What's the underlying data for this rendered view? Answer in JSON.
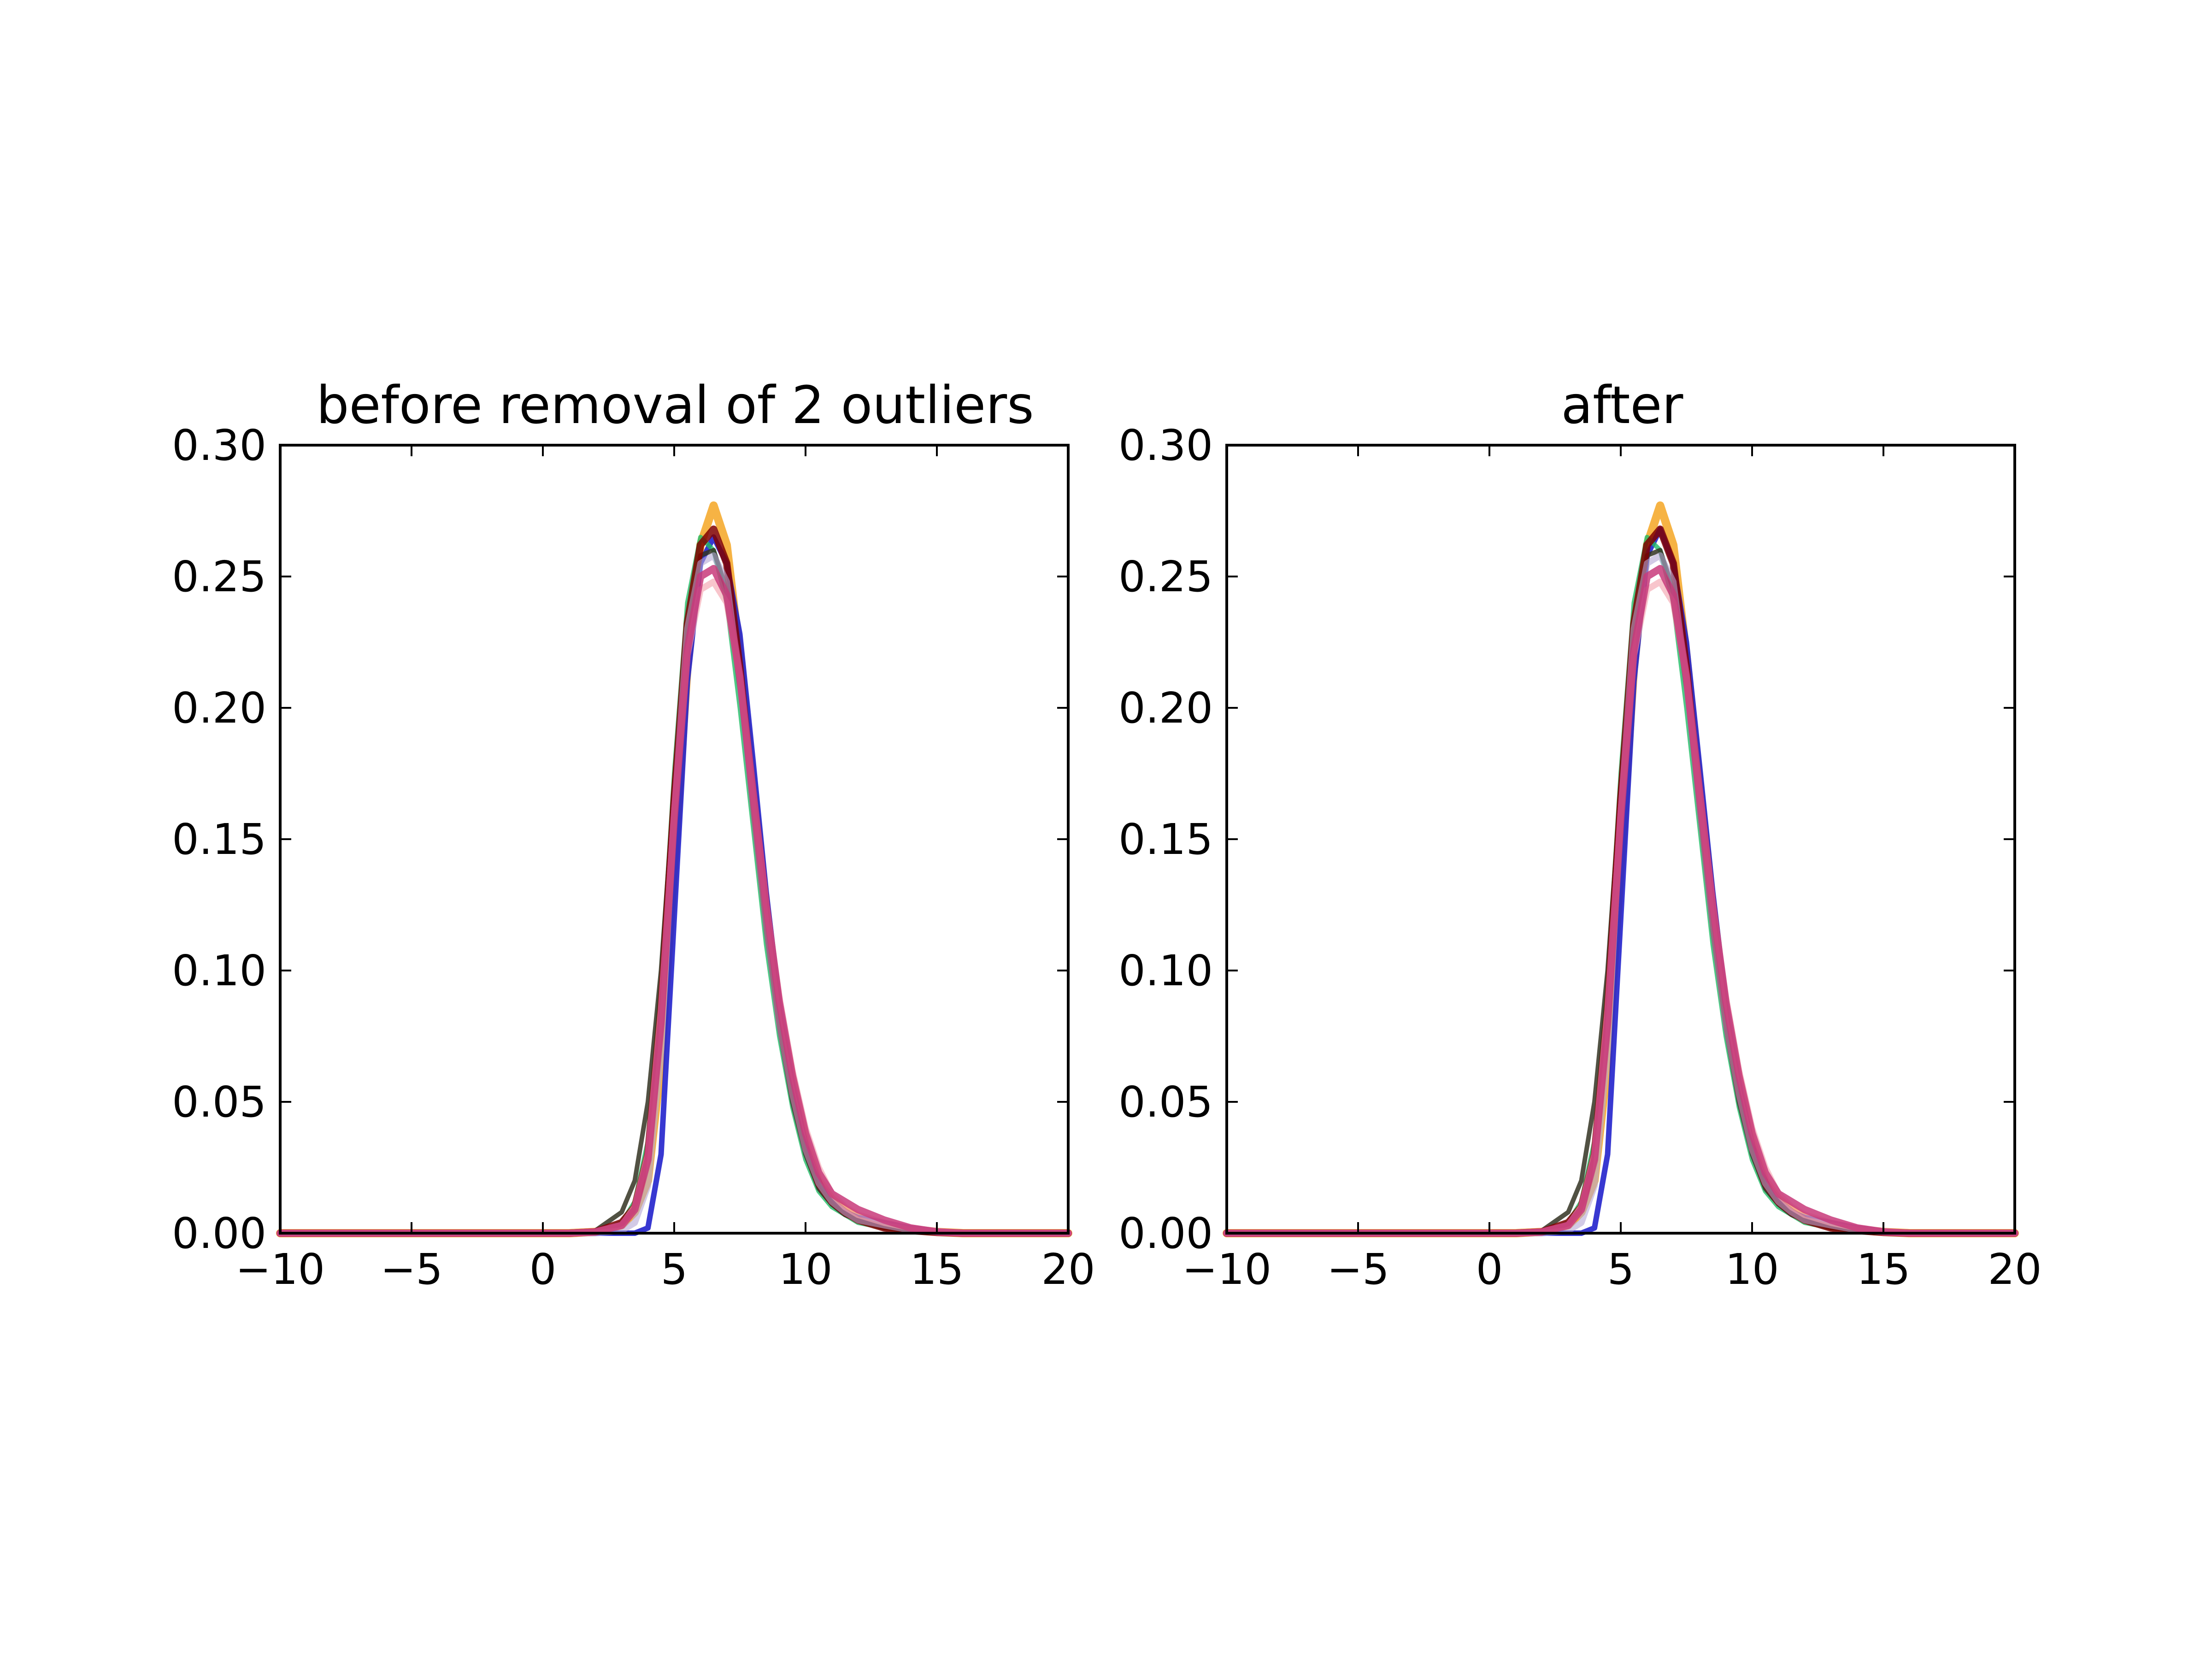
{
  "chart_data": [
    {
      "type": "line",
      "title": "before removal of 2 outliers",
      "xlabel": "",
      "ylabel": "",
      "xlim": [
        -10,
        20
      ],
      "ylim": [
        0,
        0.3
      ],
      "grid": false,
      "legend": "none",
      "x_ticks": [
        "−10",
        "−5",
        "0",
        "5",
        "10",
        "15",
        "20"
      ],
      "x_tick_values": [
        -10,
        -5,
        0,
        5,
        10,
        15,
        20
      ],
      "y_ticks": [
        "0.00",
        "0.05",
        "0.10",
        "0.15",
        "0.20",
        "0.25",
        "0.30"
      ],
      "y_tick_values": [
        0,
        0.05,
        0.1,
        0.15,
        0.2,
        0.25,
        0.3
      ],
      "x": [
        -10,
        1,
        2,
        3,
        3.5,
        4,
        4.5,
        5,
        5.5,
        6,
        6.5,
        7,
        7.5,
        8,
        8.5,
        9,
        9.5,
        10,
        10.5,
        11,
        11.5,
        12,
        13,
        14,
        15,
        16,
        20
      ],
      "series": [
        {
          "color": "#f5a623",
          "values": [
            0,
            0,
            0.0005,
            0.003,
            0.008,
            0.02,
            0.065,
            0.14,
            0.215,
            0.262,
            0.277,
            0.262,
            0.22,
            0.17,
            0.125,
            0.085,
            0.058,
            0.035,
            0.02,
            0.013,
            0.009,
            0.006,
            0.003,
            0.0015,
            0.0005,
            0,
            0
          ]
        },
        {
          "color": "#2222cc",
          "values": [
            0,
            0,
            0,
            0,
            0,
            0.002,
            0.03,
            0.12,
            0.21,
            0.255,
            0.265,
            0.255,
            0.228,
            0.18,
            0.13,
            0.088,
            0.058,
            0.034,
            0.018,
            0.012,
            0.008,
            0.006,
            0.004,
            0.002,
            0.0008,
            0,
            0
          ]
        },
        {
          "color": "#22bb66",
          "values": [
            0,
            0,
            0.0005,
            0.004,
            0.012,
            0.035,
            0.095,
            0.175,
            0.24,
            0.265,
            0.26,
            0.24,
            0.2,
            0.155,
            0.11,
            0.075,
            0.048,
            0.028,
            0.016,
            0.01,
            0.007,
            0.004,
            0.002,
            0.001,
            0.0003,
            0,
            0
          ]
        },
        {
          "color": "#333322",
          "values": [
            0,
            0,
            0.001,
            0.008,
            0.02,
            0.05,
            0.1,
            0.17,
            0.23,
            0.258,
            0.26,
            0.245,
            0.207,
            0.16,
            0.115,
            0.078,
            0.05,
            0.03,
            0.017,
            0.011,
            0.007,
            0.005,
            0.002,
            0.001,
            0.0003,
            0,
            0
          ]
        },
        {
          "color": "#800000",
          "values": [
            0,
            0,
            0.0005,
            0.004,
            0.01,
            0.03,
            0.085,
            0.165,
            0.232,
            0.262,
            0.268,
            0.255,
            0.215,
            0.165,
            0.12,
            0.082,
            0.054,
            0.033,
            0.019,
            0.012,
            0.008,
            0.005,
            0.002,
            0.001,
            0.0003,
            0,
            0
          ]
        },
        {
          "color": "#b4a7d6",
          "values": [
            0,
            0,
            0,
            0.001,
            0.004,
            0.018,
            0.07,
            0.16,
            0.23,
            0.255,
            0.258,
            0.248,
            0.21,
            0.163,
            0.118,
            0.08,
            0.053,
            0.032,
            0.019,
            0.012,
            0.008,
            0.005,
            0.003,
            0.0012,
            0.0004,
            0,
            0
          ]
        },
        {
          "color": "#f4a6b0",
          "values": [
            0,
            0,
            0.0005,
            0.003,
            0.01,
            0.03,
            0.085,
            0.16,
            0.22,
            0.245,
            0.248,
            0.24,
            0.212,
            0.168,
            0.125,
            0.09,
            0.062,
            0.04,
            0.025,
            0.015,
            0.01,
            0.007,
            0.004,
            0.002,
            0.0008,
            0,
            0
          ]
        },
        {
          "color": "#c8397a",
          "values": [
            0,
            0,
            0.0005,
            0.003,
            0.009,
            0.028,
            0.08,
            0.158,
            0.222,
            0.25,
            0.253,
            0.243,
            0.212,
            0.168,
            0.125,
            0.088,
            0.06,
            0.038,
            0.023,
            0.015,
            0.012,
            0.009,
            0.005,
            0.002,
            0.0005,
            0,
            0
          ]
        }
      ]
    },
    {
      "type": "line",
      "title": "after",
      "xlabel": "",
      "ylabel": "",
      "xlim": [
        -10,
        20
      ],
      "ylim": [
        0,
        0.3
      ],
      "grid": false,
      "legend": "none",
      "x_ticks": [
        "−10",
        "−5",
        "0",
        "5",
        "10",
        "15",
        "20"
      ],
      "x_tick_values": [
        -10,
        -5,
        0,
        5,
        10,
        15,
        20
      ],
      "y_ticks": [
        "0.00",
        "0.05",
        "0.10",
        "0.15",
        "0.20",
        "0.25",
        "0.30"
      ],
      "y_tick_values": [
        0,
        0.05,
        0.1,
        0.15,
        0.2,
        0.25,
        0.3
      ],
      "x": [
        -10,
        1,
        2,
        3,
        3.5,
        4,
        4.5,
        5,
        5.5,
        6,
        6.5,
        7,
        7.5,
        8,
        8.5,
        9,
        9.5,
        10,
        10.5,
        11,
        11.5,
        12,
        13,
        14,
        15,
        16,
        20
      ],
      "series": [
        {
          "color": "#f5a623",
          "values": [
            0,
            0,
            0.0005,
            0.003,
            0.008,
            0.02,
            0.065,
            0.14,
            0.215,
            0.262,
            0.277,
            0.262,
            0.22,
            0.17,
            0.125,
            0.085,
            0.058,
            0.035,
            0.02,
            0.013,
            0.009,
            0.006,
            0.003,
            0.0015,
            0.0005,
            0,
            0
          ]
        },
        {
          "color": "#2222cc",
          "values": [
            0,
            0,
            0,
            0,
            0,
            0.002,
            0.03,
            0.12,
            0.21,
            0.258,
            0.268,
            0.255,
            0.225,
            0.178,
            0.13,
            0.088,
            0.058,
            0.034,
            0.018,
            0.012,
            0.008,
            0.006,
            0.004,
            0.002,
            0.0008,
            0,
            0
          ]
        },
        {
          "color": "#22bb66",
          "values": [
            0,
            0,
            0.0005,
            0.004,
            0.012,
            0.035,
            0.095,
            0.175,
            0.24,
            0.265,
            0.26,
            0.24,
            0.2,
            0.155,
            0.11,
            0.075,
            0.048,
            0.028,
            0.016,
            0.01,
            0.007,
            0.004,
            0.002,
            0.001,
            0.0003,
            0,
            0
          ]
        },
        {
          "color": "#333322",
          "values": [
            0,
            0,
            0.001,
            0.008,
            0.02,
            0.05,
            0.1,
            0.17,
            0.23,
            0.258,
            0.26,
            0.245,
            0.207,
            0.16,
            0.115,
            0.078,
            0.05,
            0.03,
            0.017,
            0.011,
            0.007,
            0.005,
            0.002,
            0.001,
            0.0003,
            0,
            0
          ]
        },
        {
          "color": "#800000",
          "values": [
            0,
            0,
            0.0005,
            0.004,
            0.01,
            0.03,
            0.085,
            0.165,
            0.232,
            0.262,
            0.268,
            0.255,
            0.215,
            0.165,
            0.12,
            0.082,
            0.054,
            0.033,
            0.019,
            0.012,
            0.008,
            0.005,
            0.002,
            0.001,
            0.0003,
            0,
            0
          ]
        },
        {
          "color": "#b4a7d6",
          "values": [
            0,
            0,
            0,
            0.001,
            0.004,
            0.018,
            0.07,
            0.16,
            0.23,
            0.255,
            0.258,
            0.248,
            0.21,
            0.163,
            0.118,
            0.08,
            0.053,
            0.032,
            0.019,
            0.012,
            0.008,
            0.005,
            0.003,
            0.0012,
            0.0004,
            0,
            0
          ]
        },
        {
          "color": "#f4a6b0",
          "values": [
            0,
            0,
            0.0005,
            0.003,
            0.01,
            0.03,
            0.085,
            0.16,
            0.22,
            0.245,
            0.248,
            0.24,
            0.212,
            0.168,
            0.125,
            0.09,
            0.062,
            0.04,
            0.025,
            0.015,
            0.01,
            0.007,
            0.004,
            0.002,
            0.0008,
            0,
            0
          ]
        },
        {
          "color": "#c8397a",
          "values": [
            0,
            0,
            0.0005,
            0.003,
            0.009,
            0.028,
            0.08,
            0.158,
            0.222,
            0.25,
            0.253,
            0.243,
            0.212,
            0.168,
            0.125,
            0.088,
            0.06,
            0.038,
            0.023,
            0.015,
            0.012,
            0.009,
            0.005,
            0.002,
            0.0005,
            0,
            0
          ]
        }
      ]
    }
  ]
}
